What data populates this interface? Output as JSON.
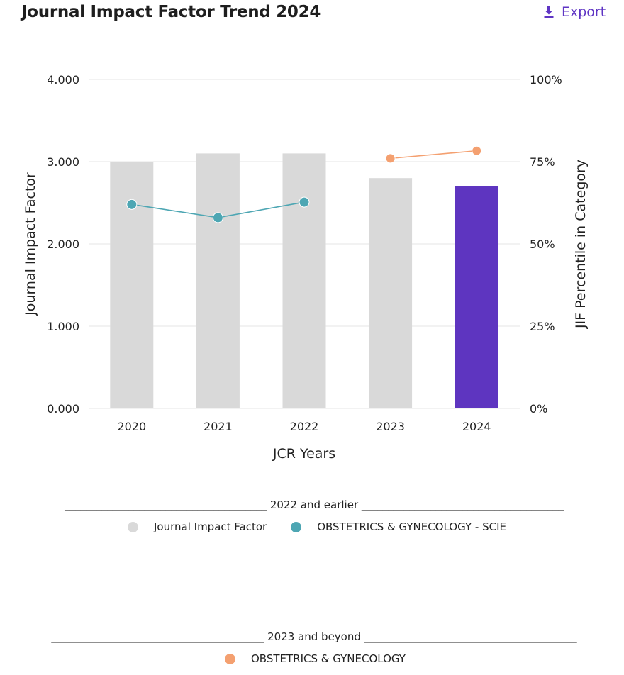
{
  "header": {
    "title": "Journal Impact Factor Trend 2024",
    "export_label": "Export",
    "export_icon": "download-icon"
  },
  "colors": {
    "bar_default": "#d9d9d9",
    "bar_highlight": "#5e35c0",
    "series_scie": "#4da6b3",
    "series_new": "#f4a070",
    "grid": "#e6e6e6",
    "accent": "#5f35c4"
  },
  "chart_data": {
    "type": "bar",
    "categories": [
      "2020",
      "2021",
      "2022",
      "2023",
      "2024"
    ],
    "values": [
      3.0,
      3.1,
      3.1,
      2.8,
      2.7
    ],
    "highlight_category": "2024",
    "xlabel": "JCR Years",
    "ylabel": "Journal Impact Factor",
    "ylabel_right": "JIF Percentile in Category",
    "ylim": [
      0,
      4
    ],
    "yticks": [
      "0.000",
      "1.000",
      "2.000",
      "3.000",
      "4.000"
    ],
    "ylim_right": [
      0,
      100
    ],
    "yticks_right": [
      "0%",
      "25%",
      "50%",
      "75%",
      "100%"
    ],
    "grid": true,
    "series": [
      {
        "name": "OBSTETRICS & GYNECOLOGY - SCIE",
        "type": "line",
        "axis": "right",
        "x": [
          "2020",
          "2021",
          "2022"
        ],
        "values": [
          62.0,
          58.0,
          62.7
        ]
      },
      {
        "name": "OBSTETRICS & GYNECOLOGY",
        "type": "line",
        "axis": "right",
        "x": [
          "2023",
          "2024"
        ],
        "values": [
          76.0,
          78.3
        ]
      }
    ],
    "legend": {
      "groups": [
        {
          "heading": "______________________________________ 2022 and earlier ______________________________________",
          "items": [
            "Journal Impact Factor",
            "OBSTETRICS & GYNECOLOGY - SCIE"
          ]
        },
        {
          "heading": "________________________________________ 2023 and beyond ________________________________________",
          "items": [
            "OBSTETRICS & GYNECOLOGY"
          ]
        }
      ]
    }
  }
}
